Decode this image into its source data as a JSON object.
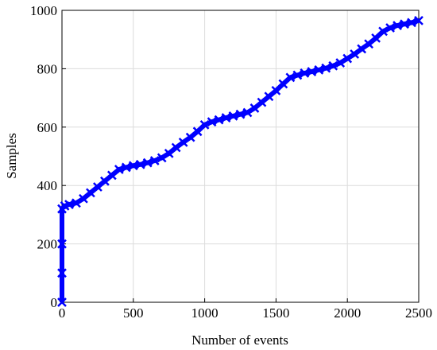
{
  "chart_data": {
    "type": "line",
    "xlabel": "Number of events",
    "ylabel": "Samples",
    "x": [
      0,
      0,
      0,
      0,
      20,
      50,
      100,
      150,
      200,
      250,
      300,
      350,
      400,
      450,
      500,
      550,
      600,
      650,
      700,
      750,
      800,
      850,
      900,
      950,
      1000,
      1050,
      1100,
      1150,
      1200,
      1250,
      1300,
      1350,
      1400,
      1450,
      1500,
      1550,
      1600,
      1650,
      1700,
      1750,
      1800,
      1850,
      1900,
      1950,
      2000,
      2050,
      2100,
      2150,
      2200,
      2250,
      2300,
      2350,
      2400,
      2450,
      2500
    ],
    "series": [
      {
        "color": "#0000ff",
        "values": [
          0,
          100,
          200,
          320,
          330,
          335,
          340,
          355,
          375,
          395,
          415,
          435,
          455,
          462,
          468,
          472,
          478,
          485,
          495,
          510,
          530,
          548,
          565,
          585,
          608,
          618,
          625,
          632,
          638,
          644,
          650,
          665,
          685,
          705,
          725,
          748,
          770,
          778,
          785,
          790,
          796,
          802,
          810,
          820,
          835,
          850,
          868,
          885,
          905,
          928,
          940,
          948,
          953,
          958,
          965
        ]
      }
    ],
    "xlim": [
      0,
      2500
    ],
    "xticks": [
      0,
      500,
      1000,
      1500,
      2000,
      2500
    ],
    "ylim": [
      0,
      1000
    ],
    "yticks": [
      0,
      200,
      400,
      600,
      800,
      1000
    ],
    "grid": true
  }
}
